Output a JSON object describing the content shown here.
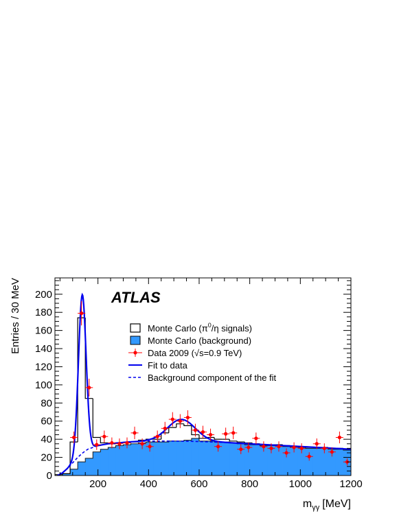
{
  "chart_data": {
    "type": "histogram",
    "title": "",
    "experiment_label": "ATLAS",
    "xlabel_main": "m",
    "xlabel_sub": "γγ",
    "xlabel_unit": "[MeV]",
    "ylabel": "Entries / 30 MeV",
    "xlim": [
      30,
      1200
    ],
    "ylim": [
      0,
      218
    ],
    "x_ticks": [
      200,
      400,
      600,
      800,
      1000,
      1200
    ],
    "x_tick_labels": [
      "200",
      "400",
      "600",
      "800",
      "1000",
      "1200"
    ],
    "y_ticks": [
      0,
      20,
      40,
      60,
      80,
      100,
      120,
      140,
      160,
      180,
      200
    ],
    "y_tick_labels": [
      "0",
      "20",
      "40",
      "60",
      "80",
      "100",
      "120",
      "140",
      "160",
      "180",
      "200"
    ],
    "bin_width": 30,
    "bin_edges_start": 30,
    "grid": false,
    "legend_position": "center",
    "legend": [
      {
        "key": "mc_signal",
        "pre": "Monte Carlo (π",
        "sup": "0",
        "post": "/η signals)"
      },
      {
        "key": "mc_background",
        "pre": "Monte Carlo (background)",
        "sup": "",
        "post": ""
      },
      {
        "key": "data",
        "pre": "Data 2009 (√s=0.9 TeV)",
        "sup": "",
        "post": ""
      },
      {
        "key": "fit",
        "pre": "Fit to data",
        "sup": "",
        "post": ""
      },
      {
        "key": "fit_bkg",
        "pre": "Background component of the fit",
        "sup": "",
        "post": ""
      }
    ],
    "series": [
      {
        "key": "mc_signal",
        "values": [
          1,
          2,
          37,
          174,
          85,
          42,
          36,
          35,
          36,
          36,
          37,
          39,
          40,
          40,
          47,
          53,
          57,
          55,
          45,
          41,
          42,
          40,
          40,
          38,
          37,
          36,
          35,
          34,
          34,
          34,
          33,
          32,
          32,
          31,
          31,
          31,
          30,
          30,
          29
        ],
        "color": "#000000"
      },
      {
        "key": "mc_background",
        "values": [
          0,
          2,
          7,
          15,
          19,
          26,
          29,
          31,
          33,
          34,
          35,
          36,
          37,
          37,
          37,
          38,
          38,
          39,
          41,
          38,
          38,
          37,
          37,
          36,
          35,
          34,
          34,
          33,
          33,
          33,
          32,
          31,
          31,
          30,
          30,
          30,
          29,
          29,
          28
        ],
        "color": "#3399ff"
      },
      {
        "key": "data",
        "x": [
          105,
          135,
          165,
          195,
          225,
          255,
          285,
          315,
          345,
          375,
          405,
          435,
          465,
          495,
          525,
          555,
          585,
          615,
          645,
          675,
          705,
          735,
          765,
          795,
          825,
          855,
          885,
          915,
          945,
          975,
          1005,
          1035,
          1065,
          1095,
          1125,
          1155,
          1185
        ],
        "values": [
          42,
          179,
          97,
          34,
          43,
          36,
          35,
          36,
          47,
          35,
          32,
          43,
          52,
          62,
          60,
          64,
          50,
          48,
          45,
          32,
          46,
          47,
          29,
          31,
          41,
          32,
          30,
          32,
          25,
          31,
          30,
          21,
          35,
          30,
          26,
          42,
          15
        ],
        "errors": [
          6.5,
          13.4,
          9.8,
          5.8,
          6.6,
          6.0,
          5.9,
          6.0,
          6.9,
          5.9,
          5.7,
          6.6,
          7.2,
          7.9,
          7.7,
          8.0,
          7.1,
          6.9,
          6.7,
          5.7,
          6.8,
          6.9,
          5.4,
          5.6,
          6.4,
          5.7,
          5.5,
          5.7,
          5.0,
          5.6,
          5.5,
          4.6,
          5.9,
          5.5,
          5.1,
          6.5,
          3.9
        ],
        "color": "#ff0000"
      },
      {
        "key": "fit",
        "color": "#0000ee",
        "model": {
          "peak1_mean": 138,
          "peak1_sigma": 15,
          "peak1_amp": 175,
          "peak2_mean": 530,
          "peak2_sigma": 55,
          "peak2_amp": 24
        }
      },
      {
        "key": "fit_bkg",
        "color": "#0000ee",
        "x": [
          40,
          60,
          80,
          100,
          120,
          140,
          160,
          180,
          200,
          240,
          280,
          320,
          360,
          400,
          500,
          600,
          700,
          800,
          900,
          1000,
          1100,
          1200
        ],
        "values": [
          0,
          3,
          8,
          14,
          20,
          25,
          29,
          31,
          33,
          35,
          36,
          37,
          37.5,
          38,
          38,
          37.5,
          36.5,
          35,
          33.5,
          32,
          30.5,
          29
        ]
      }
    ]
  }
}
